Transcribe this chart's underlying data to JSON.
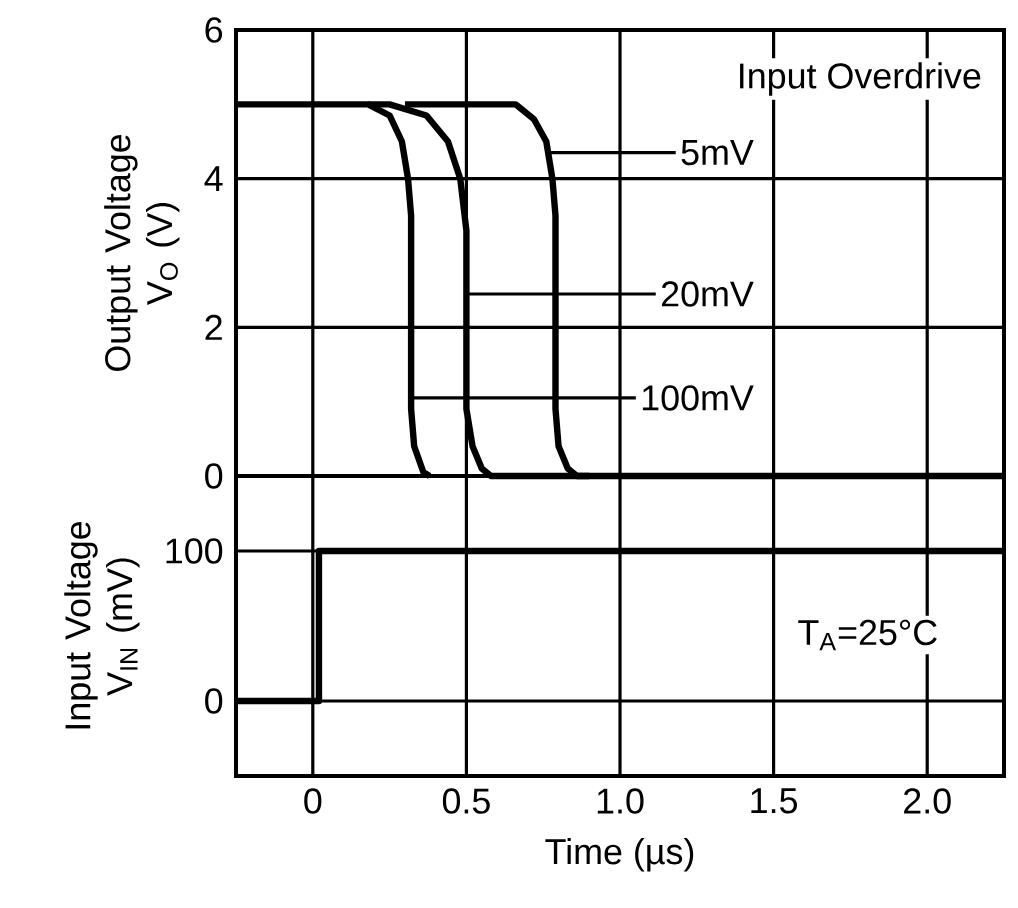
{
  "chart_data": [
    {
      "type": "line",
      "ylabel": "Output Voltage V$_{O}$ (V)",
      "xlim": [
        -0.25,
        2.25
      ],
      "ylim": [
        0,
        6
      ],
      "yticks": [
        0,
        2,
        4,
        6
      ],
      "grid": true,
      "tick_labels": "y",
      "line_style": "solid",
      "series": [
        {
          "name": "100mV",
          "color": "#000000",
          "x": [
            -0.25,
            0.18,
            0.25,
            0.29,
            0.31,
            0.32,
            0.32,
            0.33,
            0.36,
            0.38
          ],
          "values": [
            5,
            5,
            4.85,
            4.5,
            4,
            3.5,
            0.9,
            0.4,
            0.05,
            0
          ]
        },
        {
          "name": "20mV",
          "color": "#000000",
          "x": [
            0.18,
            0.25,
            0.37,
            0.44,
            0.48,
            0.5,
            0.5,
            0.52,
            0.55,
            0.58,
            0.9
          ],
          "values": [
            5,
            5,
            4.85,
            4.5,
            4,
            3.3,
            0.9,
            0.4,
            0.1,
            0,
            0
          ]
        },
        {
          "name": "5mV",
          "color": "#000000",
          "x": [
            0.3,
            0.66,
            0.72,
            0.76,
            0.78,
            0.79,
            0.79,
            0.8,
            0.83,
            0.86,
            2.25
          ],
          "values": [
            5,
            5,
            4.8,
            4.5,
            4,
            3.5,
            0.9,
            0.4,
            0.1,
            0,
            0
          ]
        }
      ],
      "legend_title": "Input Overdrive"
    },
    {
      "type": "line",
      "xlabel": "Time (µs)",
      "ylabel": "Input Voltage V$_{IN}$ (mV)",
      "xlim": [
        -0.25,
        2.25
      ],
      "ylim": [
        -50,
        150
      ],
      "xticks": [
        0,
        0.5,
        {
          "value": 1,
          "label": "1.0"
        },
        1.5,
        {
          "value": 2,
          "label": "2.0"
        }
      ],
      "yticks": [
        0,
        100
      ],
      "grid": true,
      "line_style": "solid",
      "series": [
        {
          "color": "#000000",
          "x": [
            -0.25,
            0.02,
            0.02,
            2.25
          ],
          "values": [
            0,
            0,
            100,
            100
          ]
        }
      ],
      "annotations": [
        "T$_{A}$=25°C"
      ]
    }
  ]
}
